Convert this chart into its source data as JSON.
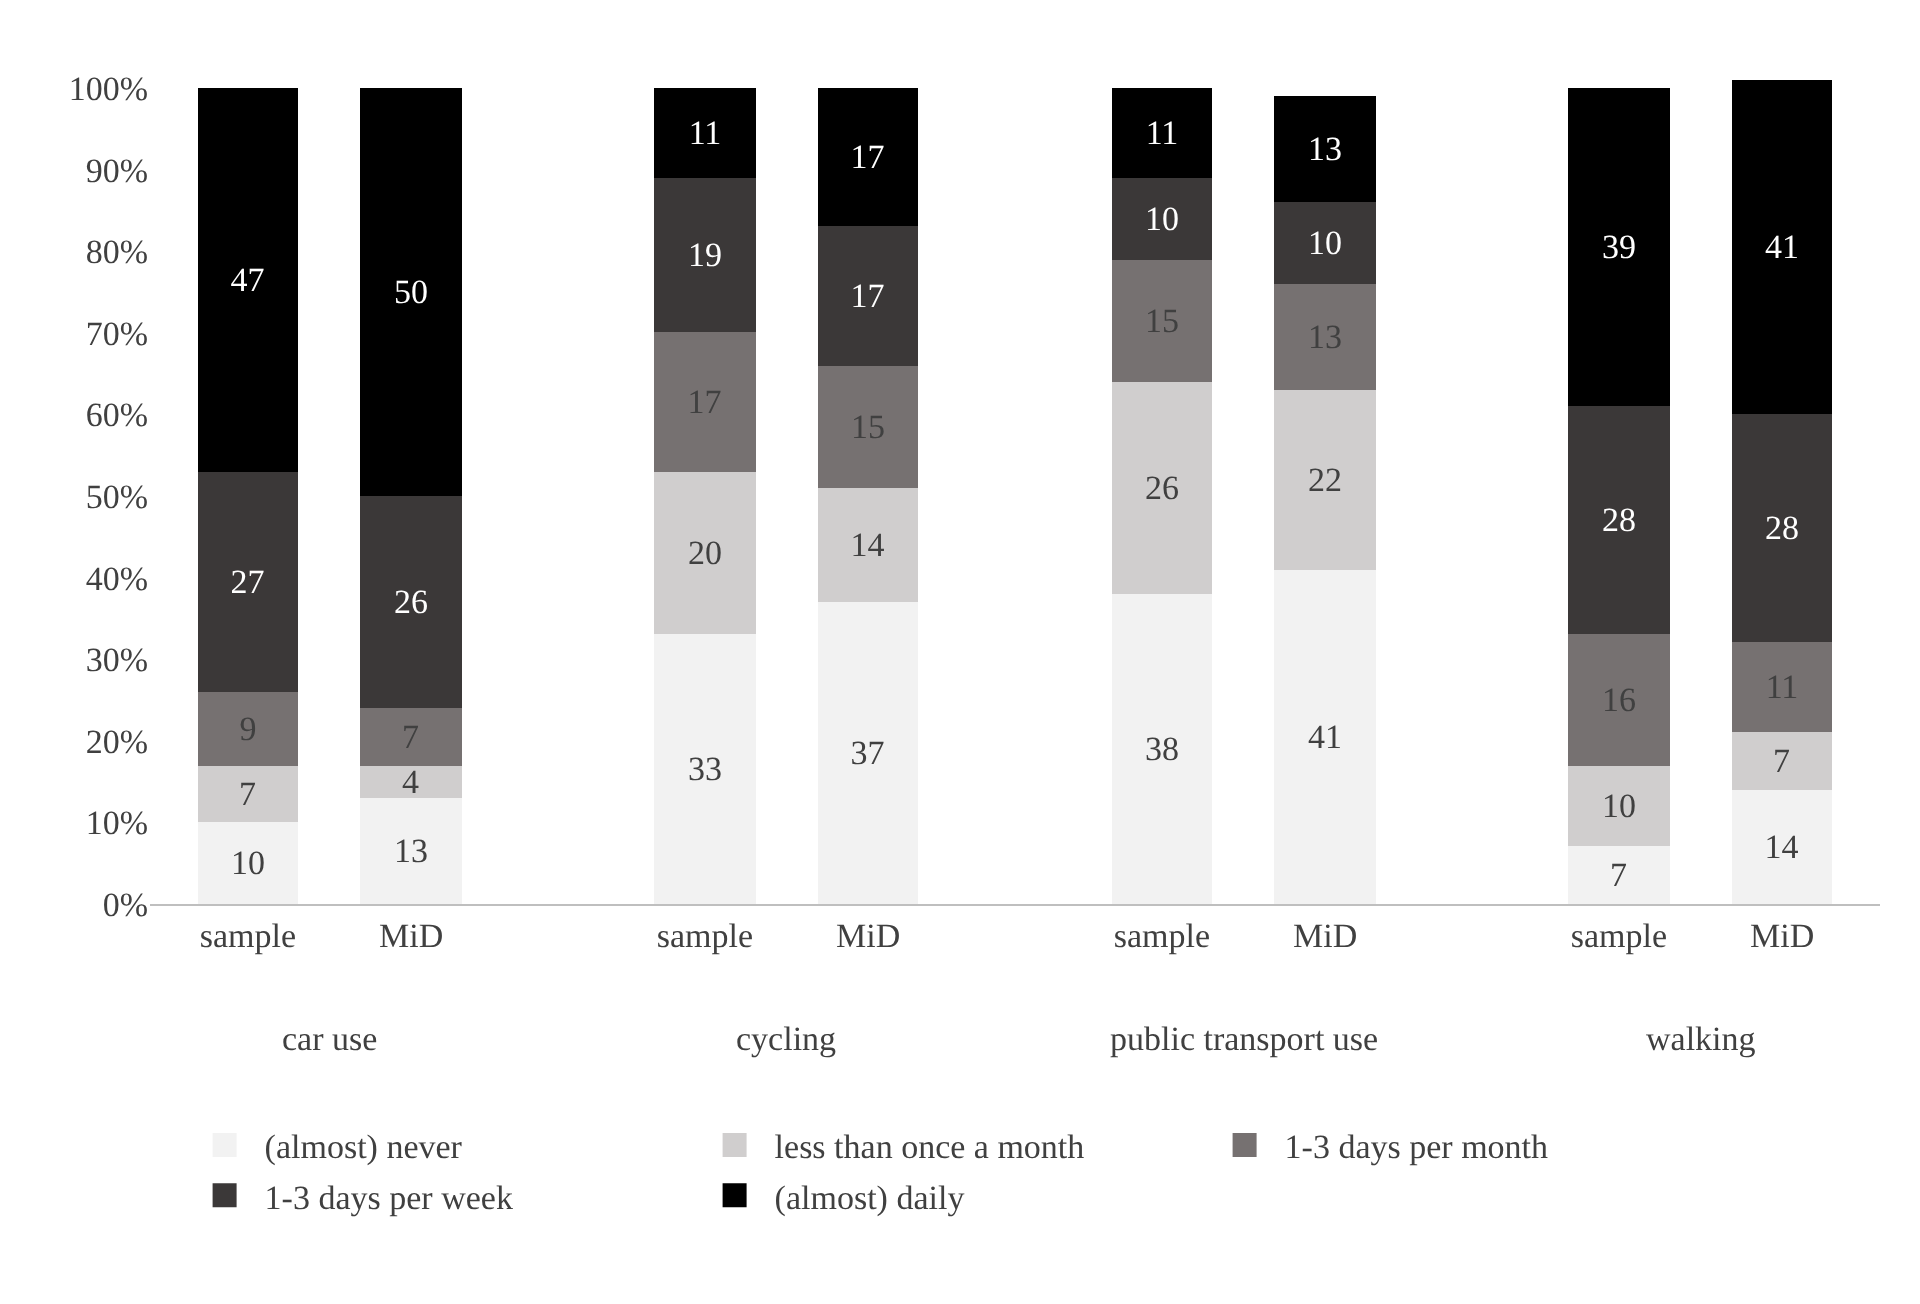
{
  "chart_data": {
    "type": "bar",
    "stacked": true,
    "data_labels": true,
    "categories": [
      "sample",
      "MiD",
      "sample",
      "MiD",
      "sample",
      "MiD",
      "sample",
      "MiD"
    ],
    "series": [
      {
        "name": "(almost) never",
        "color": "#f2f2f2",
        "values": [
          10,
          13,
          33,
          37,
          38,
          41,
          7,
          14
        ]
      },
      {
        "name": "less than once a month",
        "color": "#d0cece",
        "values": [
          7,
          4,
          20,
          14,
          26,
          22,
          10,
          7
        ]
      },
      {
        "name": "1-3 days per month",
        "color": "#767171",
        "values": [
          9,
          7,
          17,
          15,
          15,
          13,
          16,
          11
        ]
      },
      {
        "name": "1-3 days per week",
        "color": "#3b3838",
        "values": [
          27,
          26,
          19,
          17,
          10,
          10,
          28,
          28
        ]
      },
      {
        "name": "(almost) daily",
        "color": "#000000",
        "values": [
          47,
          50,
          11,
          17,
          11,
          13,
          39,
          41
        ]
      }
    ],
    "annotations": [
      "car use",
      "cycling",
      "public transport use",
      "walking"
    ],
    "ylim": [
      0,
      101
    ],
    "yticks": [
      {
        "value": 0,
        "label": "0%"
      },
      {
        "value": 10,
        "label": "10%"
      },
      {
        "value": 20,
        "label": "20%"
      },
      {
        "value": 30,
        "label": "30%"
      },
      {
        "value": 40,
        "label": "40%"
      },
      {
        "value": 50,
        "label": "50%"
      },
      {
        "value": 60,
        "label": "60%"
      },
      {
        "value": 70,
        "label": "70%"
      },
      {
        "value": 80,
        "label": "80%"
      },
      {
        "value": 90,
        "label": "90%"
      },
      {
        "value": 100,
        "label": "100%"
      }
    ],
    "legend": "bottom"
  }
}
